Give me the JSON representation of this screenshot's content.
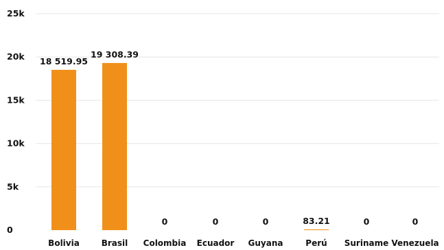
{
  "chart_data": {
    "type": "bar",
    "title": "",
    "xlabel": "",
    "ylabel": "",
    "categories": [
      "Bolivia",
      "Brasil",
      "Colombia",
      "Ecuador",
      "Guyana",
      "Perú",
      "Suriname",
      "Venezuela"
    ],
    "values": [
      18519.95,
      19308.39,
      0,
      0,
      0,
      83.21,
      0,
      0
    ],
    "data_labels": [
      "18 519.95",
      "19 308.39",
      "0",
      "0",
      "0",
      "83.21",
      "0",
      "0"
    ],
    "ylim": [
      0,
      25000
    ],
    "yticks": [
      0,
      5000,
      10000,
      15000,
      20000,
      25000
    ],
    "ytick_labels": [
      "0",
      "5k",
      "10k",
      "15k",
      "20k",
      "25k"
    ],
    "grid": true,
    "bar_color": "#f0901a",
    "grid_color": "#e6e6e6"
  }
}
